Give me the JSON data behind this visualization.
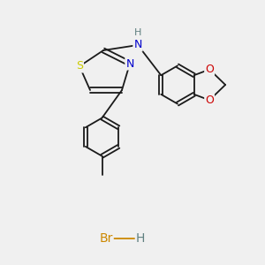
{
  "background_color": "#f0f0f0",
  "bond_color": "#1a1a1a",
  "atom_colors": {
    "S": "#cccc00",
    "N": "#0000cc",
    "O": "#cc0000",
    "H": "#608080",
    "Br": "#cc8800",
    "C": "#1a1a1a"
  },
  "font_size": 9,
  "lw": 1.3
}
